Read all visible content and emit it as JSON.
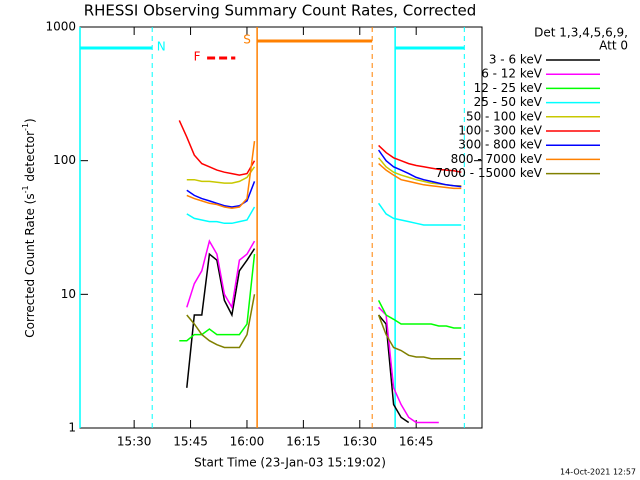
{
  "chart_data": {
    "type": "line",
    "title": "RHESSI Observing Summary Count Rates, Corrected",
    "xlabel": "Start Time (23-Jan-03 15:19:02)",
    "ylabel": [
      "Corrected Count Rate (s",
      "-1",
      " detector",
      "-1",
      ")"
    ],
    "footer": "14-Oct-2021 12:57",
    "legend_header": [
      "Det 1,3,4,5,6,9,",
      "Att 0"
    ],
    "ylog": true,
    "xlim": [
      15.6,
      122.5
    ],
    "ylim": [
      1,
      1000
    ],
    "xticks": [
      {
        "value": 30,
        "label": "15:30"
      },
      {
        "value": 45,
        "label": "15:45"
      },
      {
        "value": 60,
        "label": "16:00"
      },
      {
        "value": 75,
        "label": "16:15"
      },
      {
        "value": 90,
        "label": "16:30"
      },
      {
        "value": 105,
        "label": "16:45"
      }
    ],
    "yticks": [
      1,
      10,
      100,
      1000
    ],
    "x": [
      42,
      44,
      46,
      48,
      50,
      52,
      54,
      56,
      58,
      60,
      62,
      80,
      95,
      97,
      99,
      101,
      103,
      105,
      107,
      109,
      111,
      113,
      115,
      117
    ],
    "series": [
      {
        "name": "3 - 6 keV",
        "color": "#000000",
        "values": [
          null,
          2,
          7,
          7,
          20,
          18,
          9,
          7,
          15,
          18,
          22,
          null,
          7,
          6,
          1.5,
          1.2,
          1.1,
          null,
          null,
          null,
          null,
          null,
          null,
          null
        ]
      },
      {
        "name": "6 - 12 keV",
        "color": "#ff00ff",
        "values": [
          null,
          8,
          12,
          15,
          25,
          20,
          10,
          8,
          18,
          20,
          25,
          null,
          8,
          7,
          2,
          1.5,
          1.2,
          1.1,
          1.1,
          1.1,
          1.1,
          null,
          null,
          null
        ]
      },
      {
        "name": "12 - 25 keV",
        "color": "#00ff00",
        "values": [
          4.5,
          4.5,
          5,
          5,
          5.5,
          5,
          5,
          5,
          5,
          6,
          20,
          null,
          9,
          7,
          6.5,
          6,
          6,
          6,
          6,
          6,
          5.8,
          5.8,
          5.6,
          5.6
        ]
      },
      {
        "name": "25 - 50 keV",
        "color": "#00ffff",
        "values": [
          null,
          40,
          37,
          36,
          35,
          35,
          34,
          34,
          35,
          36,
          45,
          null,
          48,
          40,
          37,
          36,
          35,
          34,
          33,
          33,
          33,
          33,
          33,
          33
        ]
      },
      {
        "name": "50 - 100 keV",
        "color": "#c8c800",
        "values": [
          null,
          72,
          72,
          70,
          70,
          69,
          68,
          68,
          70,
          75,
          90,
          null,
          105,
          90,
          82,
          78,
          75,
          72,
          70,
          68,
          67,
          66,
          65,
          65
        ]
      },
      {
        "name": "100 - 300 keV",
        "color": "#ff0000",
        "values": [
          200,
          150,
          110,
          95,
          90,
          85,
          82,
          80,
          78,
          80,
          100,
          null,
          130,
          115,
          105,
          100,
          95,
          92,
          90,
          88,
          86,
          85,
          84,
          82
        ]
      },
      {
        "name": "300 - 800 keV",
        "color": "#0000ff",
        "values": [
          null,
          60,
          55,
          52,
          50,
          48,
          46,
          45,
          46,
          50,
          70,
          null,
          120,
          100,
          90,
          85,
          80,
          75,
          72,
          70,
          68,
          66,
          65,
          64
        ]
      },
      {
        "name": "800 - 7000 keV",
        "color": "#ff8000",
        "values": [
          null,
          55,
          52,
          50,
          48,
          47,
          45,
          44,
          45,
          52,
          140,
          null,
          95,
          85,
          78,
          72,
          70,
          68,
          66,
          65,
          64,
          63,
          62,
          62
        ]
      },
      {
        "name": "7000 - 15000 keV",
        "color": "#808000",
        "values": [
          null,
          7,
          6,
          5,
          4.5,
          4.2,
          4,
          4,
          4,
          5,
          10,
          null,
          7,
          5,
          4,
          3.8,
          3.5,
          3.4,
          3.4,
          3.3,
          3.3,
          3.3,
          3.3,
          3.3
        ]
      }
    ],
    "flags": [
      {
        "label": "S",
        "color": "#ff8000",
        "intervals": [
          [
            62.7,
            93.3
          ]
        ]
      },
      {
        "label": "N",
        "color": "#00ffff",
        "intervals": [
          [
            15.6,
            34.8
          ],
          [
            99.4,
            117.8
          ]
        ]
      },
      {
        "label": "F",
        "color": "#ff0000",
        "dashed": true,
        "intervals": [
          [
            49.4,
            56.9
          ]
        ]
      }
    ]
  }
}
